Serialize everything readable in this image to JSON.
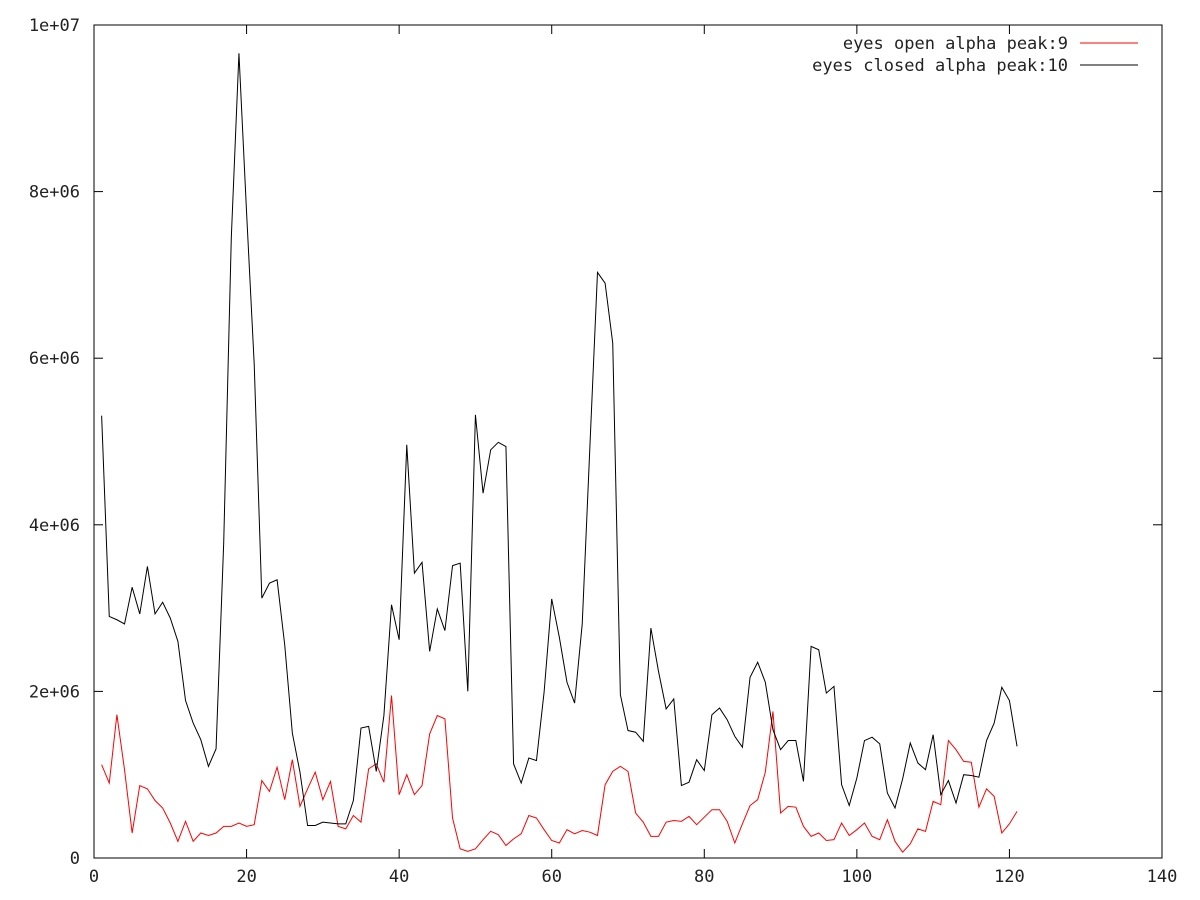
{
  "chart_data": {
    "type": "line",
    "title": "",
    "xlabel": "",
    "ylabel": "",
    "xlim": [
      0,
      140
    ],
    "ylim": [
      0,
      10000000
    ],
    "x_ticks": [
      0,
      20,
      40,
      60,
      80,
      100,
      120,
      140
    ],
    "x_tick_labels": [
      "0",
      "20",
      "40",
      "60",
      "80",
      "100",
      "120",
      "140"
    ],
    "y_ticks": [
      0,
      2000000,
      4000000,
      6000000,
      8000000,
      10000000
    ],
    "y_tick_labels": [
      "0",
      "2e+06",
      "4e+06",
      "6e+06",
      "8e+06",
      "1e+07"
    ],
    "grid": false,
    "legend_position": "top-right",
    "series": [
      {
        "name": "eyes open alpha peak:9",
        "color": "#ff0000",
        "x_start": 1,
        "values": [
          1120000,
          900000,
          1720000,
          1060000,
          300000,
          870000,
          830000,
          690000,
          600000,
          420000,
          200000,
          440000,
          200000,
          300000,
          270000,
          300000,
          380000,
          380000,
          420000,
          380000,
          400000,
          930000,
          800000,
          1090000,
          700000,
          1180000,
          620000,
          830000,
          1030000,
          700000,
          920000,
          380000,
          350000,
          510000,
          430000,
          1070000,
          1130000,
          910000,
          1950000,
          760000,
          1000000,
          760000,
          870000,
          1490000,
          1710000,
          1670000,
          480000,
          110000,
          80000,
          110000,
          220000,
          320000,
          280000,
          150000,
          230000,
          290000,
          510000,
          480000,
          340000,
          210000,
          180000,
          340000,
          290000,
          330000,
          310000,
          270000,
          880000,
          1040000,
          1100000,
          1040000,
          540000,
          430000,
          260000,
          260000,
          430000,
          450000,
          440000,
          500000,
          400000,
          490000,
          580000,
          580000,
          440000,
          180000,
          410000,
          630000,
          700000,
          1030000,
          1760000,
          540000,
          620000,
          610000,
          380000,
          260000,
          300000,
          210000,
          220000,
          420000,
          270000,
          340000,
          420000,
          260000,
          220000,
          460000,
          200000,
          70000,
          170000,
          350000,
          320000,
          680000,
          640000,
          1410000,
          1300000,
          1160000,
          1150000,
          610000,
          830000,
          740000,
          300000,
          410000,
          560000
        ]
      },
      {
        "name": "eyes closed alpha peak:10",
        "color": "#000000",
        "x_start": 1,
        "values": [
          5310000,
          2900000,
          2860000,
          2810000,
          3250000,
          2930000,
          3500000,
          2930000,
          3070000,
          2880000,
          2600000,
          1890000,
          1620000,
          1420000,
          1100000,
          1310000,
          3780000,
          7450000,
          9660000,
          7750000,
          5930000,
          3120000,
          3300000,
          3340000,
          2560000,
          1500000,
          1030000,
          390000,
          390000,
          430000,
          420000,
          410000,
          410000,
          690000,
          1560000,
          1580000,
          1040000,
          1710000,
          3040000,
          2620000,
          4960000,
          3420000,
          3550000,
          2480000,
          2990000,
          2730000,
          3510000,
          3540000,
          2000000,
          5320000,
          4380000,
          4900000,
          4990000,
          4940000,
          1130000,
          900000,
          1200000,
          1170000,
          1990000,
          3110000,
          2650000,
          2110000,
          1860000,
          2810000,
          4930000,
          7030000,
          6900000,
          6180000,
          1960000,
          1530000,
          1510000,
          1400000,
          2760000,
          2240000,
          1790000,
          1910000,
          870000,
          910000,
          1180000,
          1050000,
          1720000,
          1800000,
          1660000,
          1460000,
          1330000,
          2170000,
          2350000,
          2110000,
          1540000,
          1300000,
          1410000,
          1410000,
          920000,
          2540000,
          2500000,
          1980000,
          2060000,
          880000,
          630000,
          960000,
          1410000,
          1450000,
          1370000,
          780000,
          600000,
          950000,
          1380000,
          1140000,
          1060000,
          1480000,
          760000,
          930000,
          660000,
          1000000,
          990000,
          970000,
          1410000,
          1620000,
          2050000,
          1890000,
          1340000
        ]
      }
    ]
  }
}
